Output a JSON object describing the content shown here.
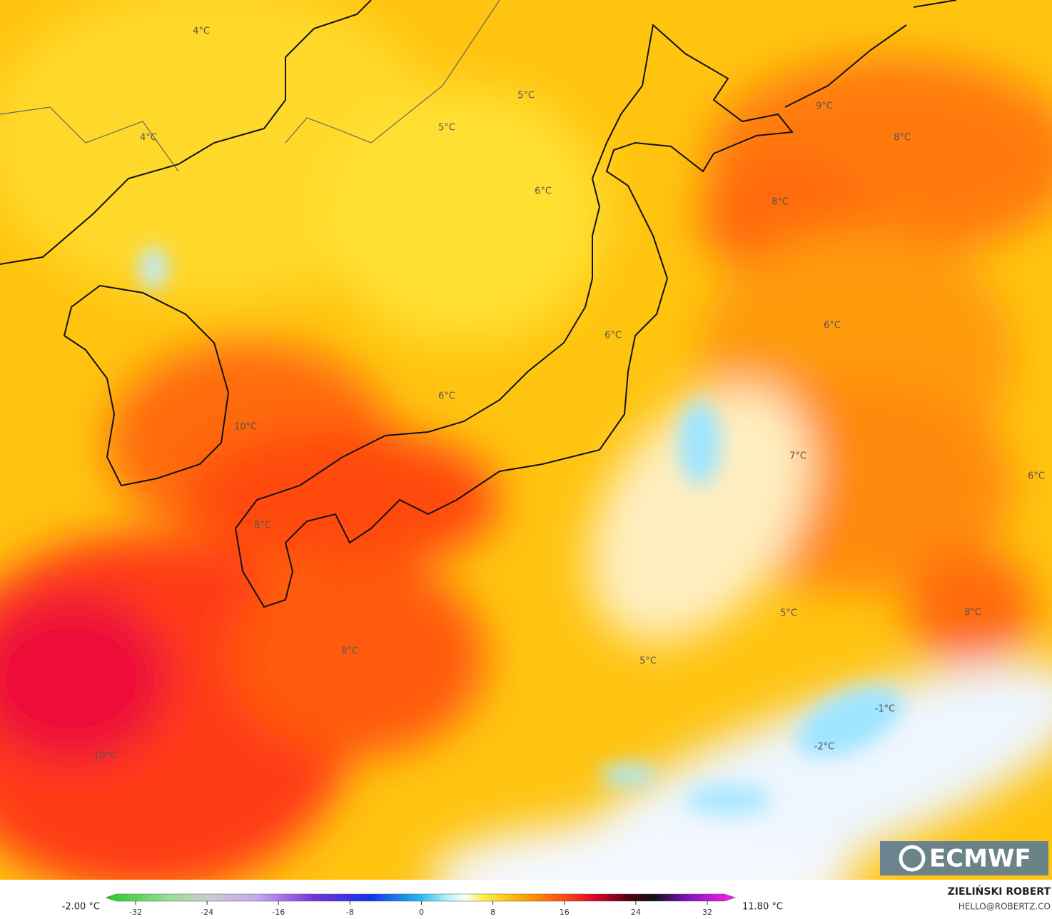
{
  "map": {
    "labels": [
      "4°C",
      "4°C",
      "5°C",
      "5°C",
      "6°C",
      "8°C",
      "8°C",
      "9°C",
      "6°C",
      "6°C",
      "6°C",
      "10°C",
      "7°C",
      "6°C",
      "8°C",
      "5°C",
      "8°C",
      "8°C",
      "5°C",
      "-1°C",
      "-2°C",
      "10°C"
    ],
    "logo": "ECMWF"
  },
  "colorbar": {
    "min_label": "-2.00 °C",
    "max_label": "11.80 °C",
    "ticks": [
      -32,
      -24,
      -16,
      -8,
      0,
      8,
      16,
      24,
      32
    ]
  },
  "credit": {
    "author": "ZIELIŃSKI ROBERT",
    "email": "HELLO@ROBERTZ.CO"
  }
}
